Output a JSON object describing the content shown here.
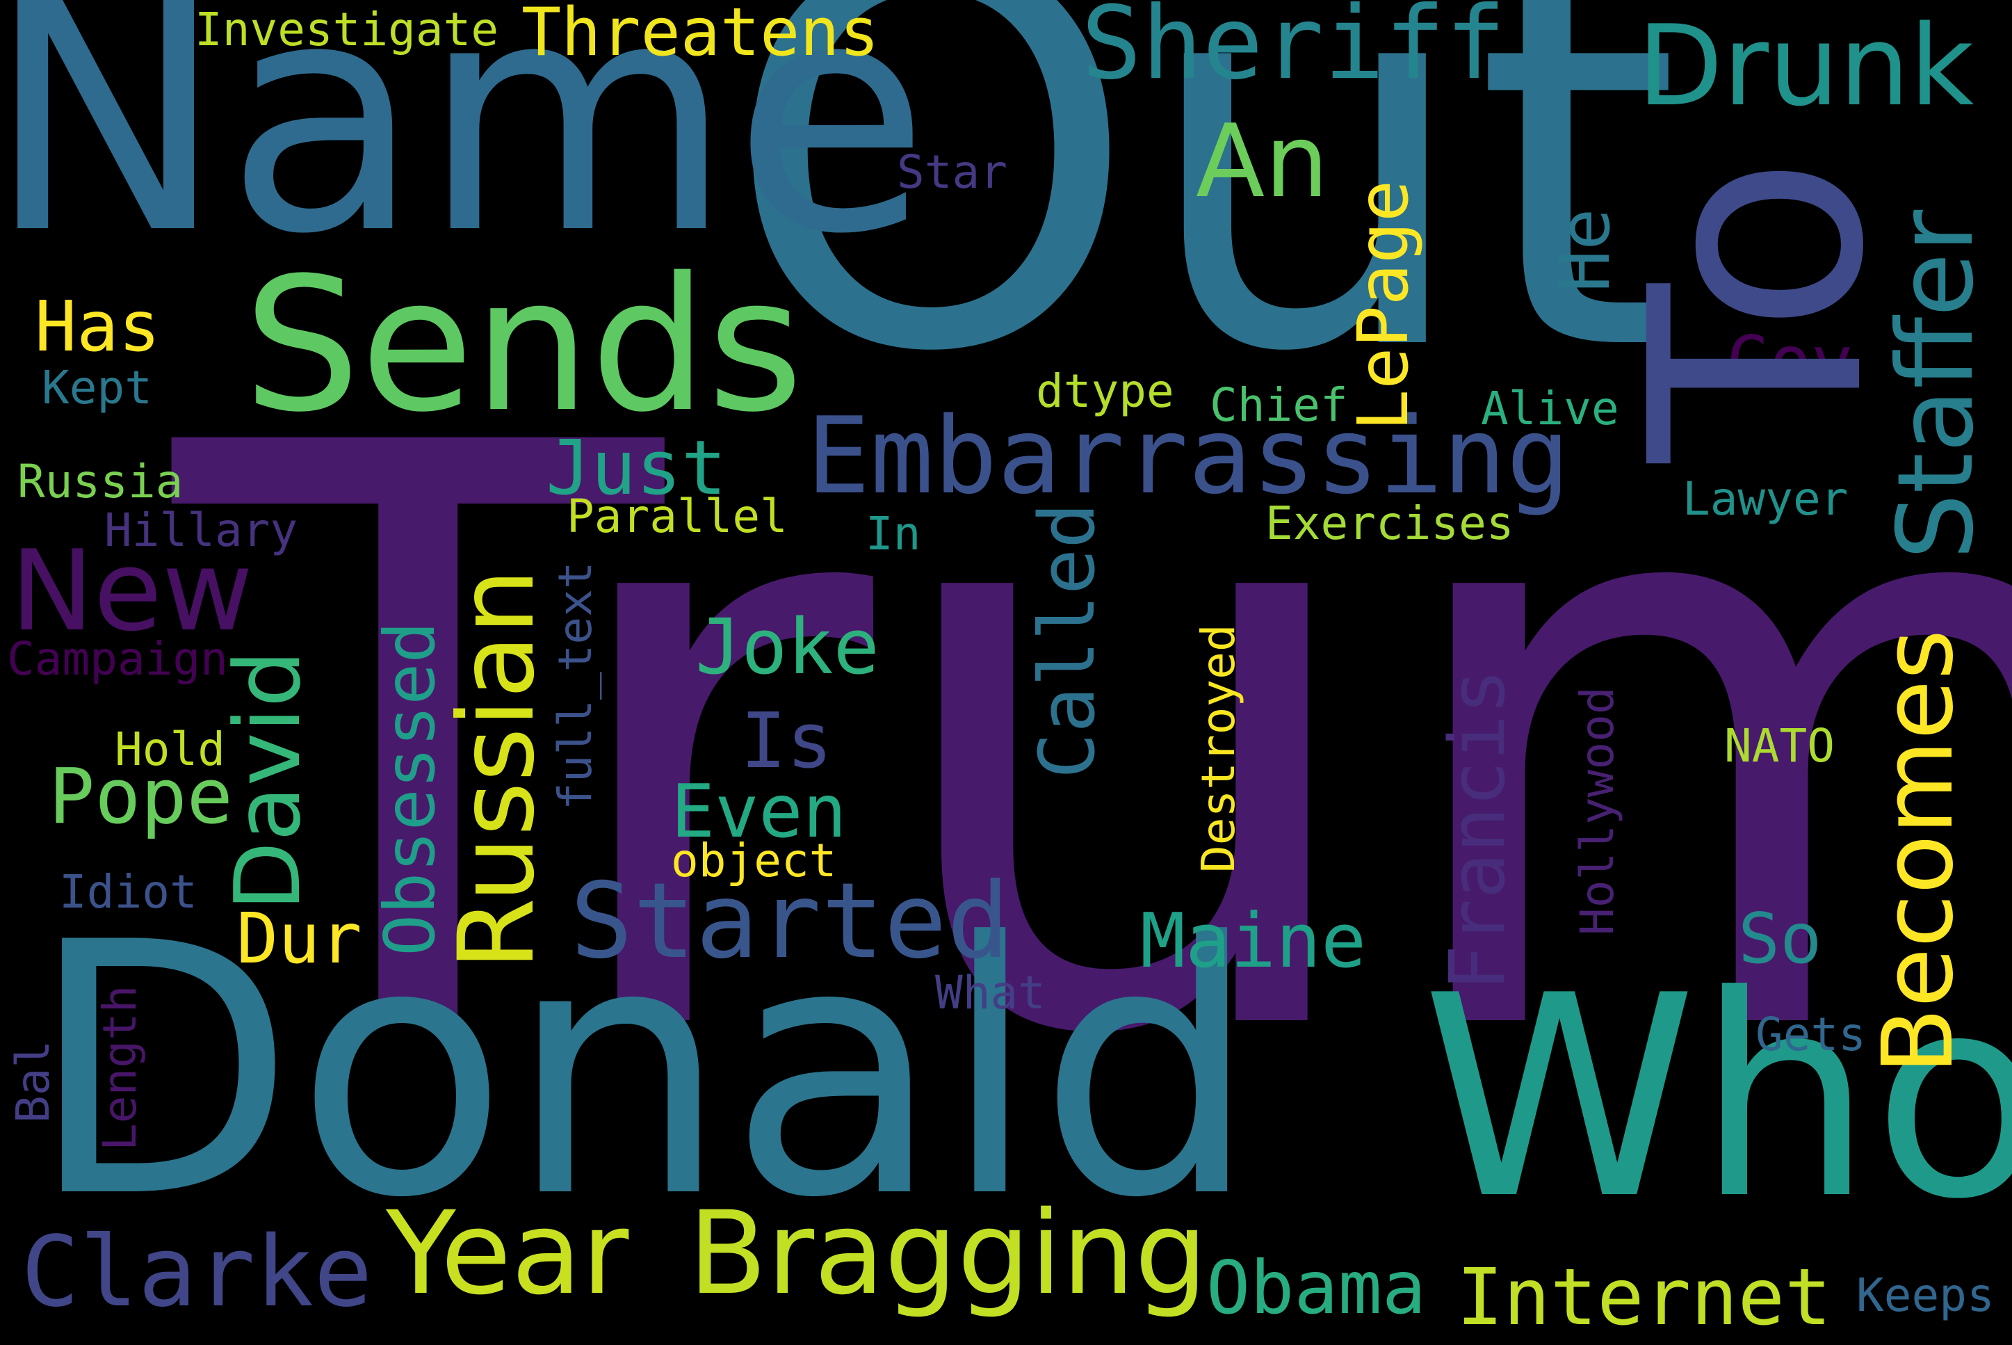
{
  "words": [
    {
      "text": "Trump",
      "color": "#481a6c"
    },
    {
      "text": "Out",
      "color": "#2c728e"
    },
    {
      "text": "Name",
      "color": "#2f6b8e"
    },
    {
      "text": "Donald",
      "color": "#2b758e"
    },
    {
      "text": "To",
      "color": "#3e4a89"
    },
    {
      "text": "Who",
      "color": "#1f9a8a"
    },
    {
      "text": "Sends",
      "color": "#5ec962"
    },
    {
      "text": "Embarrassing",
      "color": "#3b518b"
    },
    {
      "text": "Sheriff",
      "color": "#25858e"
    },
    {
      "text": "Drunk",
      "color": "#20928c"
    },
    {
      "text": "Staffer",
      "color": "#277f8e"
    },
    {
      "text": "Year",
      "color": "#c8e020"
    },
    {
      "text": "Bragging",
      "color": "#c2df23"
    },
    {
      "text": "Clarke",
      "color": "#404688"
    },
    {
      "text": "Started",
      "color": "#39568c"
    },
    {
      "text": "Russian",
      "color": "#d8e219"
    },
    {
      "text": "New",
      "color": "#471063"
    },
    {
      "text": "Becomes",
      "color": "#fde725"
    },
    {
      "text": "David",
      "color": "#35b779"
    },
    {
      "text": "Internet",
      "color": "#c0df25"
    },
    {
      "text": "Obama",
      "color": "#27ad81"
    },
    {
      "text": "Maine",
      "color": "#1fa088"
    },
    {
      "text": "Francis",
      "color": "#472d7b"
    },
    {
      "text": "Threatens",
      "color": "#f1e51d"
    },
    {
      "text": "An",
      "color": "#6ccd5a"
    },
    {
      "text": "Called",
      "color": "#2c728e"
    },
    {
      "text": "Obsessed",
      "color": "#1f9e89"
    },
    {
      "text": "Just",
      "color": "#20a386"
    },
    {
      "text": "Joke",
      "color": "#2db27d"
    },
    {
      "text": "Pope",
      "color": "#67cc5c"
    },
    {
      "text": "Even",
      "color": "#23a983"
    },
    {
      "text": "Is",
      "color": "#3f4788"
    },
    {
      "text": "Has",
      "color": "#fde725"
    },
    {
      "text": "Dur",
      "color": "#fde725"
    },
    {
      "text": "LePage",
      "color": "#fde725"
    },
    {
      "text": "Gov",
      "color": "#440154"
    },
    {
      "text": "He",
      "color": "#2a788e"
    },
    {
      "text": "So",
      "color": "#238a8d"
    },
    {
      "text": "Investigate",
      "color": "#bddf26"
    },
    {
      "text": "Star",
      "color": "#443983"
    },
    {
      "text": "Kept",
      "color": "#2a788e"
    },
    {
      "text": "dtype",
      "color": "#b5de2b"
    },
    {
      "text": "Chief",
      "color": "#4ac16d"
    },
    {
      "text": "Alive",
      "color": "#2ab07f"
    },
    {
      "text": "Russia",
      "color": "#7ad151"
    },
    {
      "text": "Hillary",
      "color": "#46327e"
    },
    {
      "text": "Parallel",
      "color": "#c2df23"
    },
    {
      "text": "In",
      "color": "#1f988b"
    },
    {
      "text": "Exercises",
      "color": "#a5db36"
    },
    {
      "text": "Lawyer",
      "color": "#21918c"
    },
    {
      "text": "Campaign",
      "color": "#440154"
    },
    {
      "text": "full_text",
      "color": "#3b528b"
    },
    {
      "text": "Destroyed",
      "color": "#f8e621"
    },
    {
      "text": "Hollywood",
      "color": "#482173"
    },
    {
      "text": "Hold",
      "color": "#c2df23"
    },
    {
      "text": "NATO",
      "color": "#addc30"
    },
    {
      "text": "object",
      "color": "#fde725"
    },
    {
      "text": "Idiot",
      "color": "#3b528b"
    },
    {
      "text": "What",
      "color": "#433e85"
    },
    {
      "text": "Bal",
      "color": "#433e85"
    },
    {
      "text": "Length",
      "color": "#481668"
    },
    {
      "text": "Gets",
      "color": "#31668e"
    },
    {
      "text": "Keeps",
      "color": "#31668e"
    }
  ]
}
